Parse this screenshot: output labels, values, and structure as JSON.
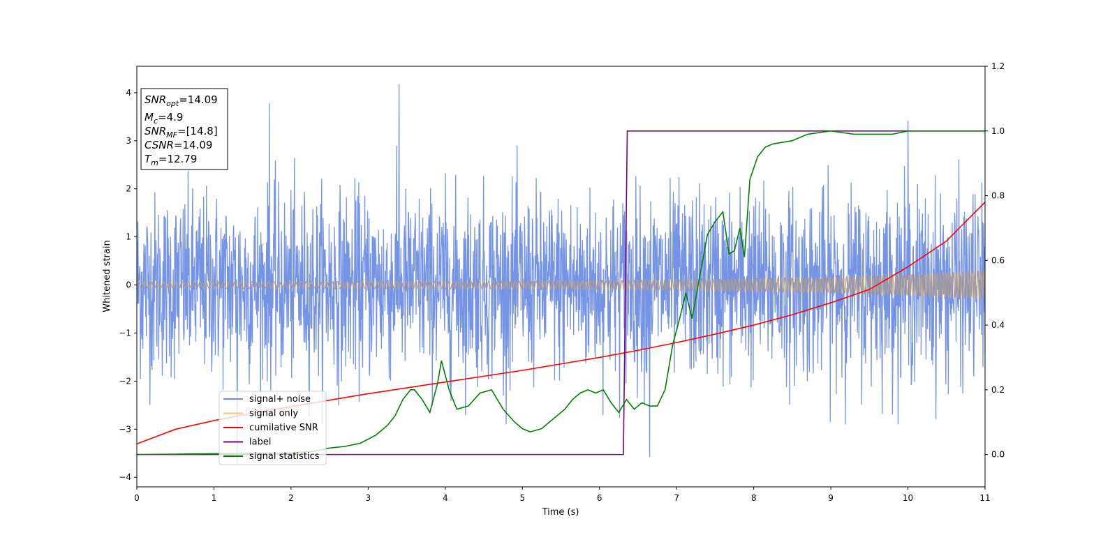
{
  "chart_data": {
    "type": "line",
    "xlabel": "Time (s)",
    "ylabel": "Whitened strain",
    "xlim": [
      0,
      11
    ],
    "ylim_left": [
      -4.2,
      4.55
    ],
    "ylim_right": [
      -0.1,
      1.2
    ],
    "x_ticks": [
      0,
      1,
      2,
      3,
      4,
      5,
      6,
      7,
      8,
      9,
      10,
      11
    ],
    "y_ticks_left": [
      -4,
      -3,
      -2,
      -1,
      0,
      1,
      2,
      3,
      4
    ],
    "y_ticks_right": [
      0.0,
      0.2,
      0.4,
      0.6,
      0.8,
      1.0,
      1.2
    ],
    "y_tick_labels_right": [
      "0.0",
      "0.2",
      "0.4",
      "0.6",
      "0.8",
      "1.0",
      "1.2"
    ],
    "legend_position": "lower-left",
    "annotation_box": [
      {
        "base": "SNR",
        "sub": "opt",
        "value": "=14.09"
      },
      {
        "base": "M",
        "sub": "c",
        "value": "=4.9"
      },
      {
        "base": "SNR",
        "sub": "MF",
        "value": "=[14.8]"
      },
      {
        "base": "CSNR",
        "sub": "",
        "value": "=14.09"
      },
      {
        "base": "T",
        "sub": "m",
        "value": "=12.79"
      }
    ],
    "series": [
      {
        "name": "signal+ noise",
        "color": "#7694e6",
        "axis": "left",
        "description_values": {
          "typical_band": [
            -2.0,
            2.0
          ],
          "peaks": [
            [
              1.72,
              3.78
            ],
            [
              3.4,
              4.18
            ],
            [
              10.0,
              3.42
            ],
            [
              1.3,
              -3.73
            ],
            [
              6.65,
              -3.58
            ]
          ]
        }
      },
      {
        "name": "signal only",
        "color": "#bf9e72",
        "axis": "left",
        "envelope_x": [
          0,
          1,
          2,
          3,
          4,
          5,
          6,
          7,
          8,
          9,
          10,
          11
        ],
        "envelope_amplitude": [
          0.07,
          0.07,
          0.07,
          0.075,
          0.08,
          0.085,
          0.095,
          0.11,
          0.13,
          0.16,
          0.22,
          0.3
        ]
      },
      {
        "name": "cumilative SNR",
        "color": "#ff0000",
        "axis": "right",
        "x": [
          0,
          0.5,
          1,
          1.5,
          2,
          2.5,
          3,
          3.5,
          4,
          4.5,
          5,
          5.5,
          6,
          6.5,
          7,
          7.5,
          8,
          8.5,
          9,
          9.5,
          10,
          10.5,
          11
        ],
        "y": [
          0.033,
          0.078,
          0.105,
          0.128,
          0.148,
          0.168,
          0.188,
          0.206,
          0.224,
          0.242,
          0.26,
          0.28,
          0.3,
          0.322,
          0.346,
          0.372,
          0.4,
          0.432,
          0.469,
          0.51,
          0.58,
          0.66,
          0.78
        ]
      },
      {
        "name": "label",
        "color": "#800080",
        "axis": "right",
        "x": [
          0,
          6.31,
          6.36,
          11
        ],
        "y": [
          0,
          0,
          1,
          1
        ]
      },
      {
        "name": "signal statistics",
        "color": "#008000",
        "axis": "right",
        "x": [
          0,
          2.0,
          2.3,
          2.5,
          2.7,
          2.9,
          3.1,
          3.25,
          3.35,
          3.45,
          3.55,
          3.6,
          3.7,
          3.8,
          3.9,
          3.95,
          4.05,
          4.15,
          4.3,
          4.45,
          4.6,
          4.75,
          4.9,
          5.0,
          5.1,
          5.25,
          5.4,
          5.55,
          5.65,
          5.75,
          5.85,
          5.95,
          6.05,
          6.15,
          6.25,
          6.35,
          6.45,
          6.55,
          6.65,
          6.75,
          6.85,
          6.95,
          7.05,
          7.12,
          7.2,
          7.3,
          7.4,
          7.5,
          7.6,
          7.68,
          7.75,
          7.82,
          7.88,
          7.95,
          8.05,
          8.15,
          8.25,
          8.5,
          8.7,
          9.0,
          9.3,
          9.6,
          9.8,
          10.0,
          10.5,
          11.0
        ],
        "y": [
          0.0,
          0.005,
          0.01,
          0.02,
          0.025,
          0.035,
          0.06,
          0.09,
          0.12,
          0.17,
          0.2,
          0.2,
          0.17,
          0.13,
          0.22,
          0.29,
          0.2,
          0.14,
          0.15,
          0.19,
          0.2,
          0.14,
          0.1,
          0.08,
          0.07,
          0.08,
          0.11,
          0.14,
          0.17,
          0.19,
          0.2,
          0.19,
          0.2,
          0.16,
          0.13,
          0.17,
          0.14,
          0.16,
          0.15,
          0.15,
          0.2,
          0.34,
          0.43,
          0.5,
          0.42,
          0.55,
          0.68,
          0.72,
          0.75,
          0.62,
          0.63,
          0.7,
          0.61,
          0.85,
          0.92,
          0.95,
          0.96,
          0.97,
          0.99,
          1.0,
          0.99,
          0.99,
          0.99,
          1.0,
          1.0,
          1.0
        ]
      }
    ]
  }
}
